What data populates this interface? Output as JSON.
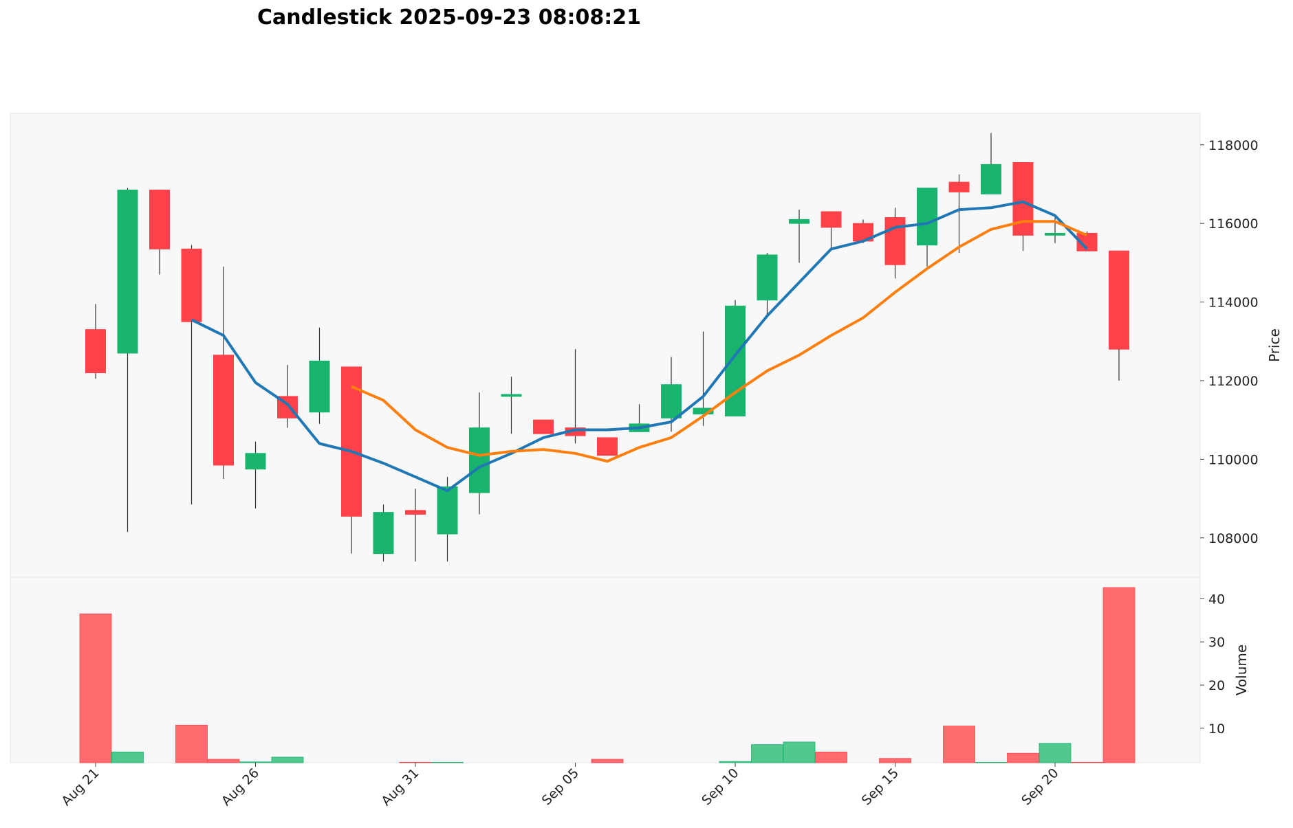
{
  "title": "Candlestick 2025-09-23 08:08:21",
  "colors": {
    "up": "#18b46e",
    "down": "#ff4249",
    "up_volume": "#52c78e",
    "down_volume": "#ff6b6f",
    "ma_short": "#1f77b4",
    "ma_long": "#ff7f0e",
    "panel_bg": "#f8f8f8"
  },
  "chart_data": [
    {
      "type": "candlestick",
      "ylabel": "Price",
      "ylim": [
        107000,
        118800
      ],
      "yticks": [
        108000,
        110000,
        112000,
        114000,
        116000,
        118000
      ],
      "x_tick_labels": [
        {
          "index": 0,
          "label": "Aug 21"
        },
        {
          "index": 5,
          "label": "Aug 26"
        },
        {
          "index": 10,
          "label": "Aug 31"
        },
        {
          "index": 15,
          "label": "Sep 05"
        },
        {
          "index": 20,
          "label": "Sep 10"
        },
        {
          "index": 25,
          "label": "Sep 15"
        },
        {
          "index": 30,
          "label": "Sep 20"
        }
      ],
      "dates": [
        "2025-08-21",
        "2025-08-22",
        "2025-08-23",
        "2025-08-24",
        "2025-08-25",
        "2025-08-26",
        "2025-08-27",
        "2025-08-28",
        "2025-08-29",
        "2025-08-30",
        "2025-08-31",
        "2025-09-01",
        "2025-09-02",
        "2025-09-03",
        "2025-09-04",
        "2025-09-05",
        "2025-09-06",
        "2025-09-07",
        "2025-09-08",
        "2025-09-09",
        "2025-09-10",
        "2025-09-11",
        "2025-09-12",
        "2025-09-13",
        "2025-09-14",
        "2025-09-15",
        "2025-09-16",
        "2025-09-17",
        "2025-09-18",
        "2025-09-19",
        "2025-09-20",
        "2025-09-21",
        "2025-09-22"
      ],
      "candles": [
        {
          "open": 113300,
          "high": 113950,
          "low": 112050,
          "close": 112200
        },
        {
          "open": 112700,
          "high": 116900,
          "low": 108150,
          "close": 116850
        },
        {
          "open": 116850,
          "high": 116850,
          "low": 114700,
          "close": 115350
        },
        {
          "open": 115350,
          "high": 115450,
          "low": 108850,
          "close": 113500
        },
        {
          "open": 112650,
          "high": 114900,
          "low": 109500,
          "close": 109850
        },
        {
          "open": 109750,
          "high": 110450,
          "low": 108750,
          "close": 110150
        },
        {
          "open": 111600,
          "high": 112400,
          "low": 110800,
          "close": 111050
        },
        {
          "open": 111200,
          "high": 113350,
          "low": 110900,
          "close": 112500
        },
        {
          "open": 112350,
          "high": 112350,
          "low": 107600,
          "close": 108550
        },
        {
          "open": 107600,
          "high": 108850,
          "low": 107400,
          "close": 108650
        },
        {
          "open": 108700,
          "high": 109250,
          "low": 107400,
          "close": 108600
        },
        {
          "open": 108100,
          "high": 109550,
          "low": 107400,
          "close": 109300
        },
        {
          "open": 109150,
          "high": 111700,
          "low": 108600,
          "close": 110800
        },
        {
          "open": 111600,
          "high": 112100,
          "low": 110650,
          "close": 111650
        },
        {
          "open": 111000,
          "high": 111000,
          "low": 110650,
          "close": 110650
        },
        {
          "open": 110800,
          "high": 112800,
          "low": 110400,
          "close": 110600
        },
        {
          "open": 110550,
          "high": 110550,
          "low": 110100,
          "close": 110100
        },
        {
          "open": 110700,
          "high": 111400,
          "low": 110700,
          "close": 110900
        },
        {
          "open": 111050,
          "high": 112600,
          "low": 110700,
          "close": 111900
        },
        {
          "open": 111150,
          "high": 113250,
          "low": 110850,
          "close": 111300
        },
        {
          "open": 111100,
          "high": 114050,
          "low": 111100,
          "close": 113900
        },
        {
          "open": 114050,
          "high": 115250,
          "low": 113650,
          "close": 115200
        },
        {
          "open": 116000,
          "high": 116350,
          "low": 115000,
          "close": 116100
        },
        {
          "open": 116300,
          "high": 116300,
          "low": 115300,
          "close": 115900
        },
        {
          "open": 116000,
          "high": 116100,
          "low": 115500,
          "close": 115550
        },
        {
          "open": 116150,
          "high": 116400,
          "low": 114600,
          "close": 114950
        },
        {
          "open": 115450,
          "high": 116900,
          "low": 114900,
          "close": 116900
        },
        {
          "open": 117050,
          "high": 117250,
          "low": 115250,
          "close": 116800
        },
        {
          "open": 116750,
          "high": 118300,
          "low": 116750,
          "close": 117500
        },
        {
          "open": 117550,
          "high": 117550,
          "low": 115300,
          "close": 115700
        },
        {
          "open": 115700,
          "high": 116200,
          "low": 115500,
          "close": 115750
        },
        {
          "open": 115750,
          "high": 115800,
          "low": 115300,
          "close": 115300
        },
        {
          "open": 115300,
          "high": 115300,
          "low": 112000,
          "close": 112800
        }
      ],
      "series": [
        {
          "role": "ma_short",
          "values": [
            null,
            null,
            null,
            113550,
            113150,
            111950,
            111400,
            110400,
            110200,
            109900,
            109550,
            109200,
            109800,
            110150,
            110550,
            110750,
            110750,
            110800,
            110950,
            111600,
            112650,
            113650,
            114500,
            115350,
            115550,
            115900,
            116000,
            116350,
            116400,
            116550,
            116200,
            115350,
            null
          ]
        },
        {
          "role": "ma_long",
          "values": [
            null,
            null,
            null,
            null,
            null,
            null,
            null,
            null,
            111850,
            111500,
            110750,
            110300,
            110100,
            110200,
            110250,
            110150,
            109950,
            110300,
            110550,
            111100,
            111700,
            112250,
            112650,
            113150,
            113600,
            114250,
            114850,
            115400,
            115850,
            116050,
            116050,
            115700,
            null
          ]
        }
      ]
    },
    {
      "type": "bar",
      "ylabel": "Volume",
      "ylim": [
        2,
        45
      ],
      "yticks": [
        10,
        20,
        30,
        40
      ],
      "values": [
        36.5,
        4.5,
        null,
        10.7,
        2.8,
        2.2,
        3.3,
        null,
        null,
        null,
        2.1,
        2.1,
        null,
        null,
        null,
        null,
        2.8,
        null,
        null,
        null,
        2.3,
        6.2,
        6.8,
        4.5,
        null,
        3.0,
        null,
        10.5,
        2.1,
        4.2,
        6.5,
        2.1,
        42.6
      ],
      "direction": [
        "down",
        "up",
        "down",
        "down",
        "down",
        "up",
        "up",
        "up",
        "down",
        "up",
        "down",
        "up",
        "up",
        "up",
        "down",
        "down",
        "down",
        "up",
        "up",
        "up",
        "up",
        "up",
        "up",
        "down",
        "down",
        "down",
        "up",
        "down",
        "up",
        "down",
        "up",
        "down",
        "down"
      ]
    }
  ]
}
